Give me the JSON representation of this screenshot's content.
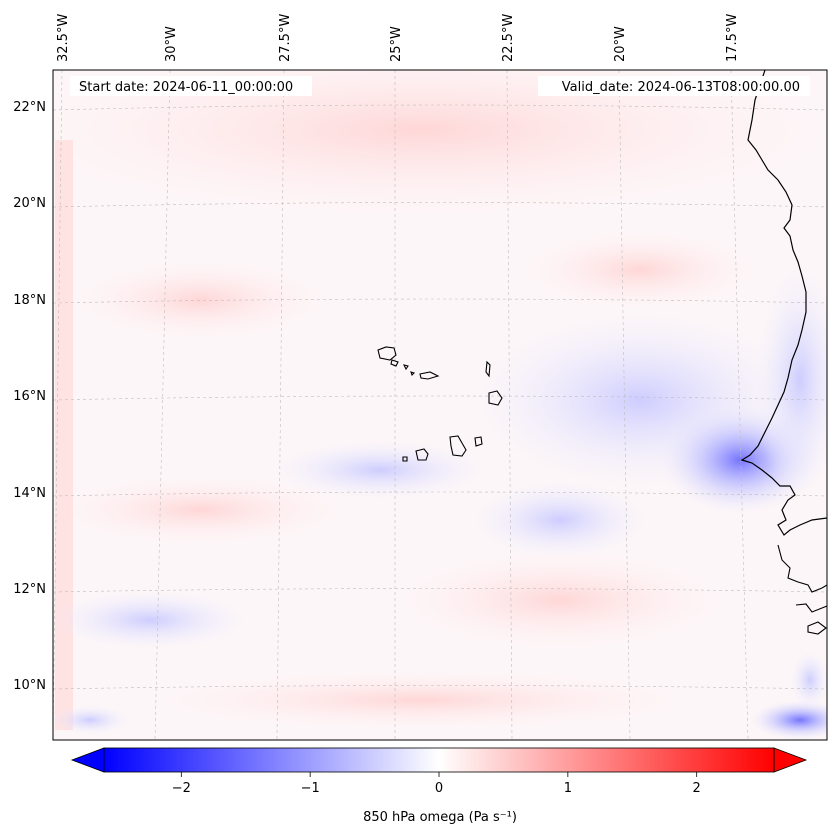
{
  "map": {
    "start_label": "Start date: 2024-06-11_00:00:00",
    "valid_label": "Valid_date: 2024-06-13T08:00:00.00",
    "longitude_labels": [
      "32.5°W",
      "30°W",
      "27.5°W",
      "25°W",
      "22.5°W",
      "20°W",
      "17.5°W"
    ],
    "latitude_labels": [
      "22°N",
      "20°N",
      "18°N",
      "16°N",
      "14°N",
      "12°N",
      "10°N"
    ],
    "gridlines": true,
    "field_color_negative": "#0000ff",
    "field_color_positive": "#ff0000"
  },
  "colorbar": {
    "tick_labels": [
      "−2",
      "−1",
      "0",
      "1",
      "2"
    ],
    "label": "850 hPa omega (Pa s⁻¹)",
    "range": [
      -2.6,
      2.6
    ],
    "extend": "both"
  }
}
